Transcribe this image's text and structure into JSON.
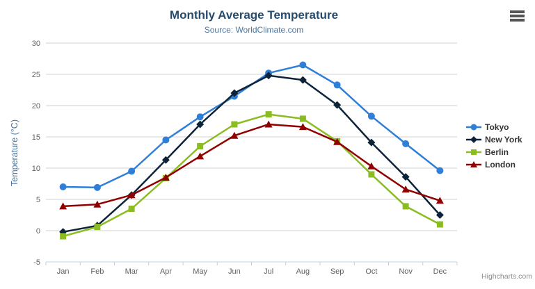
{
  "chart_data": {
    "type": "line",
    "title": "Monthly Average Temperature",
    "subtitle": "Source: WorldClimate.com",
    "categories": [
      "Jan",
      "Feb",
      "Mar",
      "Apr",
      "May",
      "Jun",
      "Jul",
      "Aug",
      "Sep",
      "Oct",
      "Nov",
      "Dec"
    ],
    "series": [
      {
        "name": "Tokyo",
        "color": "#2f7ed8",
        "marker": "circle",
        "values": [
          7.0,
          6.9,
          9.5,
          14.5,
          18.2,
          21.5,
          25.2,
          26.5,
          23.3,
          18.3,
          13.9,
          9.6
        ]
      },
      {
        "name": "New York",
        "color": "#0d233a",
        "marker": "diamond",
        "values": [
          -0.2,
          0.8,
          5.7,
          11.3,
          17.0,
          22.0,
          24.8,
          24.1,
          20.1,
          14.1,
          8.6,
          2.5
        ]
      },
      {
        "name": "Berlin",
        "color": "#8bbc21",
        "marker": "square",
        "values": [
          -0.9,
          0.6,
          3.5,
          8.4,
          13.5,
          17.0,
          18.6,
          17.9,
          14.3,
          9.0,
          3.9,
          1.0
        ]
      },
      {
        "name": "London",
        "color": "#910000",
        "marker": "triangle",
        "values": [
          3.9,
          4.2,
          5.7,
          8.5,
          11.9,
          15.2,
          17.0,
          16.6,
          14.2,
          10.3,
          6.6,
          4.8
        ]
      }
    ],
    "xlabel": "",
    "ylabel": "Temperature (°C)",
    "ylim": [
      -5,
      30
    ],
    "y_ticks": [
      30,
      25,
      20,
      15,
      10,
      5,
      0,
      -5
    ],
    "grid": true,
    "legend_position": "right"
  },
  "credits": {
    "label": "Highcharts.com"
  },
  "colors": {
    "grid_line": "#d0d0d0",
    "axis_line": "#c0d0e0",
    "tick_label": "#606060",
    "title": "#274b6d",
    "subtitle": "#4d759e",
    "axis_title": "#4d759e",
    "legend_text": "#333333",
    "credits": "#8c8c8c",
    "export_icon": "#555555"
  }
}
